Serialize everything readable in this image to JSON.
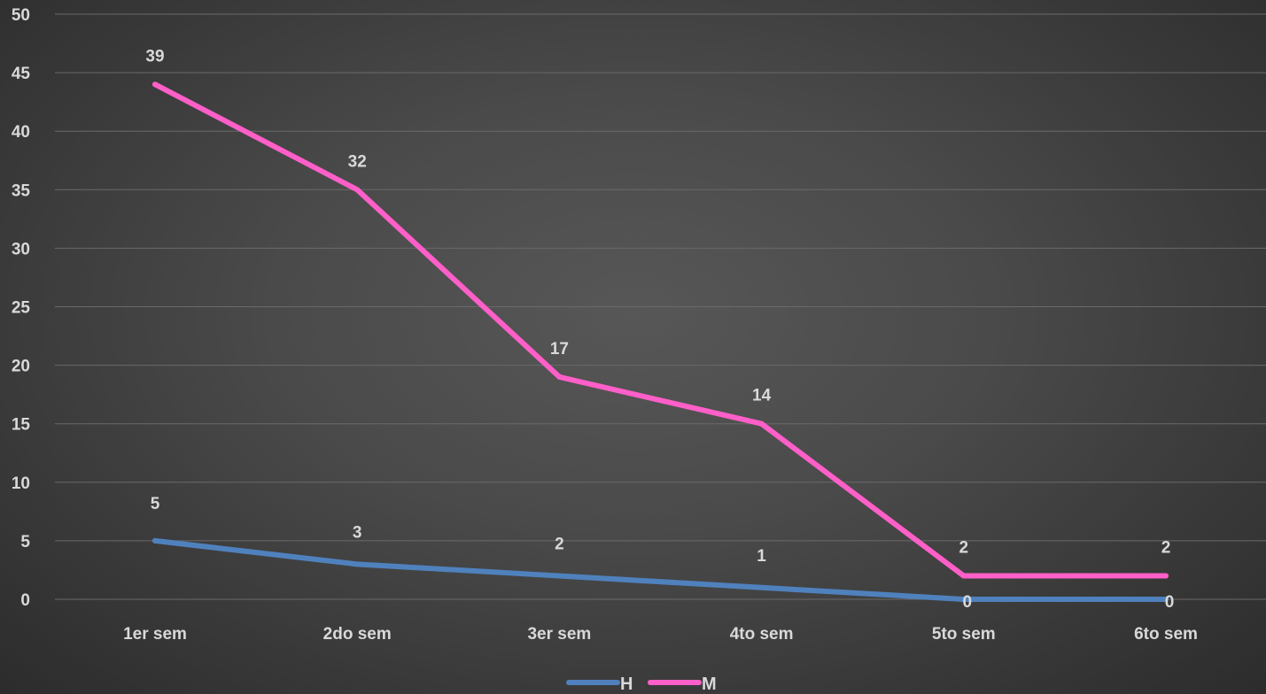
{
  "chart_data": {
    "type": "line",
    "categories": [
      "1er sem",
      "2do sem",
      "3er sem",
      "4to sem",
      "5to sem",
      "6to sem"
    ],
    "ylim": [
      0,
      50
    ],
    "yticks": [
      0,
      5,
      10,
      15,
      20,
      25,
      30,
      35,
      40,
      45,
      50
    ],
    "grid": true,
    "legend_position": "bottom",
    "series": [
      {
        "name": "H",
        "color": "#4f81bd",
        "values": [
          5,
          3,
          2,
          1,
          0,
          0
        ],
        "labels": [
          "5",
          "3",
          "2",
          "1",
          "0",
          "0"
        ]
      },
      {
        "name": "M",
        "color": "#ff5fc8",
        "values": [
          44,
          35,
          19,
          15,
          2,
          2
        ],
        "labels": [
          "39",
          "32",
          "17",
          "14",
          "2",
          "2"
        ]
      }
    ]
  }
}
